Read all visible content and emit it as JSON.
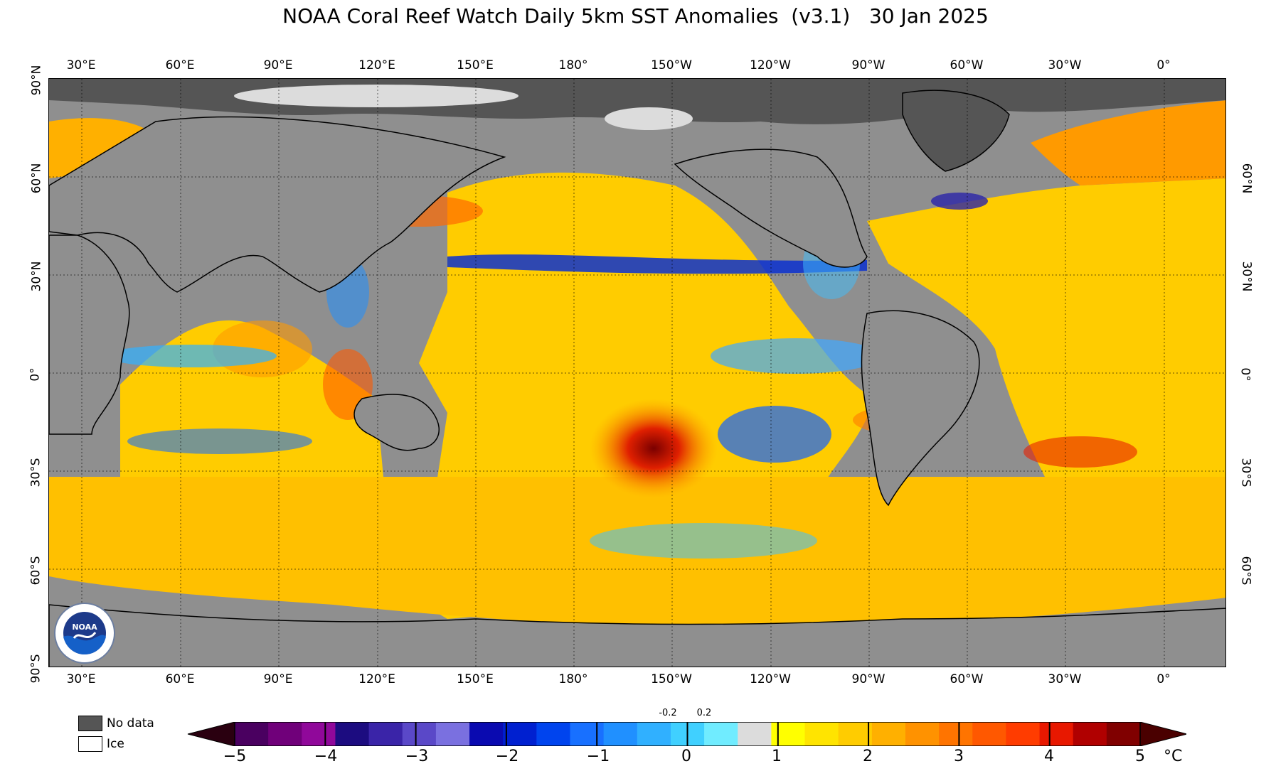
{
  "title": "NOAA Coral Reef Watch Daily 5km SST Anomalies  (v3.1)   30 Jan 2025",
  "lon_labels": [
    "30°E",
    "60°E",
    "90°E",
    "120°E",
    "150°E",
    "180°",
    "150°W",
    "120°W",
    "90°W",
    "60°W",
    "30°W",
    "0°"
  ],
  "lat_labels_left": [
    "90°N",
    "60°N",
    "30°N",
    "0°",
    "30°S",
    "60°S",
    "90°S"
  ],
  "lat_labels_right": [
    "60°N",
    "30°N",
    "0°",
    "30°S",
    "60°S"
  ],
  "legend": {
    "nodata_label": "No data",
    "ice_label": "Ice",
    "nodata_color": "#555555",
    "ice_color": "#ffffff"
  },
  "colorbar": {
    "ticks": [
      "−5",
      "−4",
      "−3",
      "−2",
      "−1",
      "0",
      "1",
      "2",
      "3",
      "4",
      "5"
    ],
    "small_ticks": [
      "-0.2",
      "0.2"
    ],
    "unit": "°C",
    "range": [
      -5,
      5
    ],
    "colors": [
      "#2a0010",
      "#4a0060",
      "#70007a",
      "#90089a",
      "#1c0c80",
      "#3a24a8",
      "#5a48c8",
      "#7a70e0",
      "#0a0ab0",
      "#0020d0",
      "#0044ee",
      "#1870ff",
      "#2090ff",
      "#30b0ff",
      "#40d0ff",
      "#70ecff",
      "#dcdcdc",
      "#ffff00",
      "#ffe400",
      "#ffcc00",
      "#ffb000",
      "#ff9200",
      "#ff7400",
      "#ff5800",
      "#ff3c00",
      "#e81800",
      "#b00000",
      "#800000",
      "#4a0000"
    ]
  },
  "logo": {
    "text": "NOAA"
  }
}
